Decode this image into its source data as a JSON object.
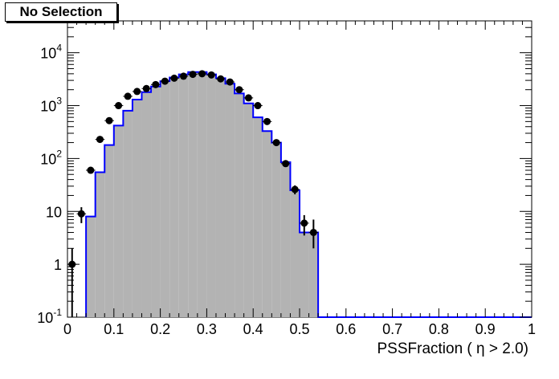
{
  "title": "No Selection",
  "chart_data": {
    "type": "histogram",
    "title": "No Selection",
    "xlabel": "PSSFraction ( η > 2.0)",
    "ylabel": "",
    "xlim": [
      0,
      1
    ],
    "ylim": [
      0.1,
      40000
    ],
    "yscale": "log",
    "grid": false,
    "x_ticks": [
      "0",
      "0.1",
      "0.2",
      "0.3",
      "0.4",
      "0.5",
      "0.6",
      "0.7",
      "0.8",
      "0.9",
      "1"
    ],
    "y_ticks": [
      "10⁻¹",
      "1",
      "10",
      "10²",
      "10³",
      "10⁴"
    ],
    "bin_width": 0.02,
    "series": [
      {
        "kind": "mc-histogram",
        "fill": "#b3b3b3",
        "line": "#0000ff",
        "bins": [
          {
            "x": 0.05,
            "y": 8
          },
          {
            "x": 0.07,
            "y": 55
          },
          {
            "x": 0.09,
            "y": 180
          },
          {
            "x": 0.11,
            "y": 420
          },
          {
            "x": 0.13,
            "y": 800
          },
          {
            "x": 0.15,
            "y": 1300
          },
          {
            "x": 0.17,
            "y": 1800
          },
          {
            "x": 0.19,
            "y": 2300
          },
          {
            "x": 0.21,
            "y": 2900
          },
          {
            "x": 0.23,
            "y": 3400
          },
          {
            "x": 0.25,
            "y": 3900
          },
          {
            "x": 0.27,
            "y": 4300
          },
          {
            "x": 0.29,
            "y": 4300
          },
          {
            "x": 0.31,
            "y": 3900
          },
          {
            "x": 0.33,
            "y": 3300
          },
          {
            "x": 0.35,
            "y": 2600
          },
          {
            "x": 0.37,
            "y": 1700
          },
          {
            "x": 0.39,
            "y": 1100
          },
          {
            "x": 0.41,
            "y": 600
          },
          {
            "x": 0.43,
            "y": 330
          },
          {
            "x": 0.45,
            "y": 200
          },
          {
            "x": 0.47,
            "y": 85
          },
          {
            "x": 0.49,
            "y": 25
          },
          {
            "x": 0.51,
            "y": 4
          },
          {
            "x": 0.53,
            "y": 4
          }
        ]
      },
      {
        "kind": "data-points",
        "color": "#000000",
        "points": [
          {
            "x": 0.01,
            "y": 1,
            "lo": 0.1,
            "hi": 2
          },
          {
            "x": 0.03,
            "y": 9,
            "lo": 6,
            "hi": 12
          },
          {
            "x": 0.05,
            "y": 60,
            "lo": 52,
            "hi": 68
          },
          {
            "x": 0.07,
            "y": 230,
            "lo": 215,
            "hi": 245
          },
          {
            "x": 0.09,
            "y": 520,
            "lo": 497,
            "hi": 543
          },
          {
            "x": 0.11,
            "y": 1000,
            "lo": 968,
            "hi": 1032
          },
          {
            "x": 0.13,
            "y": 1500,
            "lo": 1461,
            "hi": 1539
          },
          {
            "x": 0.15,
            "y": 1850,
            "lo": 1807,
            "hi": 1893
          },
          {
            "x": 0.17,
            "y": 2100,
            "lo": 2054,
            "hi": 2146
          },
          {
            "x": 0.19,
            "y": 2500,
            "lo": 2450,
            "hi": 2550
          },
          {
            "x": 0.21,
            "y": 2900,
            "lo": 2846,
            "hi": 2954
          },
          {
            "x": 0.23,
            "y": 3300,
            "lo": 3243,
            "hi": 3357
          },
          {
            "x": 0.25,
            "y": 3600,
            "lo": 3540,
            "hi": 3660
          },
          {
            "x": 0.27,
            "y": 3900,
            "lo": 3838,
            "hi": 3962
          },
          {
            "x": 0.29,
            "y": 4000,
            "lo": 3937,
            "hi": 4063
          },
          {
            "x": 0.31,
            "y": 3800,
            "lo": 3738,
            "hi": 3862
          },
          {
            "x": 0.33,
            "y": 3200,
            "lo": 3143,
            "hi": 3257
          },
          {
            "x": 0.35,
            "y": 2800,
            "lo": 2747,
            "hi": 2853
          },
          {
            "x": 0.37,
            "y": 2000,
            "lo": 1955,
            "hi": 2045
          },
          {
            "x": 0.39,
            "y": 1400,
            "lo": 1363,
            "hi": 1437
          },
          {
            "x": 0.41,
            "y": 1000,
            "lo": 968,
            "hi": 1032
          },
          {
            "x": 0.43,
            "y": 500,
            "lo": 478,
            "hi": 522
          },
          {
            "x": 0.45,
            "y": 200,
            "lo": 186,
            "hi": 214
          },
          {
            "x": 0.47,
            "y": 80,
            "lo": 71,
            "hi": 89
          },
          {
            "x": 0.49,
            "y": 26,
            "lo": 21,
            "hi": 31
          },
          {
            "x": 0.51,
            "y": 6,
            "lo": 3.5,
            "hi": 8.5
          },
          {
            "x": 0.53,
            "y": 4,
            "lo": 2,
            "hi": 7
          }
        ]
      }
    ]
  }
}
